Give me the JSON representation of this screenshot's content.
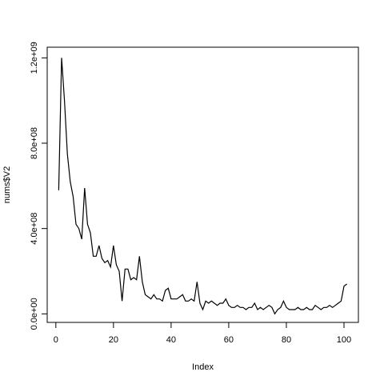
{
  "chart_data": {
    "type": "line",
    "title": "",
    "xlabel": "Index",
    "ylabel": "nums$V2",
    "xlim": [
      -3,
      105
    ],
    "ylim": [
      -40000000,
      1250000000
    ],
    "xticks": [
      0,
      20,
      40,
      60,
      80,
      100
    ],
    "xtick_labels": [
      "0",
      "20",
      "40",
      "60",
      "80",
      "100"
    ],
    "yticks": [
      0,
      400000000,
      800000000,
      1200000000
    ],
    "ytick_labels": [
      "0.0e+00",
      "4.0e+08",
      "8.0e+08",
      "1.2e+09"
    ],
    "grid": false,
    "line_color": "#000000",
    "series": [
      {
        "x": [
          1,
          2,
          3,
          4,
          5,
          6,
          7,
          8,
          9,
          10,
          11,
          12,
          13,
          14,
          15,
          16,
          17,
          18,
          19,
          20,
          21,
          22,
          23,
          24,
          25,
          26,
          27,
          28,
          29,
          30,
          31,
          32,
          33,
          34,
          35,
          36,
          37,
          38,
          39,
          40,
          41,
          42,
          43,
          44,
          45,
          46,
          47,
          48,
          49,
          50,
          51,
          52,
          53,
          54,
          55,
          56,
          57,
          58,
          59,
          60,
          61,
          62,
          63,
          64,
          65,
          66,
          67,
          68,
          69,
          70,
          71,
          72,
          73,
          74,
          75,
          76,
          77,
          78,
          79,
          80,
          81,
          82,
          83,
          84,
          85,
          86,
          87,
          88,
          89,
          90,
          91,
          92,
          93,
          94,
          95,
          96,
          97,
          98,
          99,
          100,
          101
        ],
        "y": [
          580000000,
          1200000000,
          1000000000,
          750000000,
          620000000,
          550000000,
          420000000,
          400000000,
          350000000,
          590000000,
          420000000,
          380000000,
          270000000,
          270000000,
          320000000,
          260000000,
          240000000,
          250000000,
          220000000,
          320000000,
          230000000,
          200000000,
          60000000,
          210000000,
          210000000,
          160000000,
          170000000,
          160000000,
          270000000,
          150000000,
          90000000,
          80000000,
          70000000,
          90000000,
          70000000,
          70000000,
          60000000,
          110000000,
          120000000,
          70000000,
          70000000,
          70000000,
          80000000,
          90000000,
          60000000,
          60000000,
          70000000,
          60000000,
          150000000,
          50000000,
          20000000,
          60000000,
          50000000,
          60000000,
          50000000,
          40000000,
          50000000,
          50000000,
          70000000,
          40000000,
          30000000,
          30000000,
          40000000,
          30000000,
          30000000,
          20000000,
          30000000,
          30000000,
          50000000,
          20000000,
          30000000,
          20000000,
          30000000,
          40000000,
          30000000,
          0,
          20000000,
          30000000,
          60000000,
          30000000,
          20000000,
          20000000,
          20000000,
          30000000,
          20000000,
          20000000,
          30000000,
          20000000,
          20000000,
          40000000,
          30000000,
          20000000,
          30000000,
          30000000,
          40000000,
          30000000,
          40000000,
          50000000,
          60000000,
          130000000,
          140000000
        ]
      }
    ]
  }
}
